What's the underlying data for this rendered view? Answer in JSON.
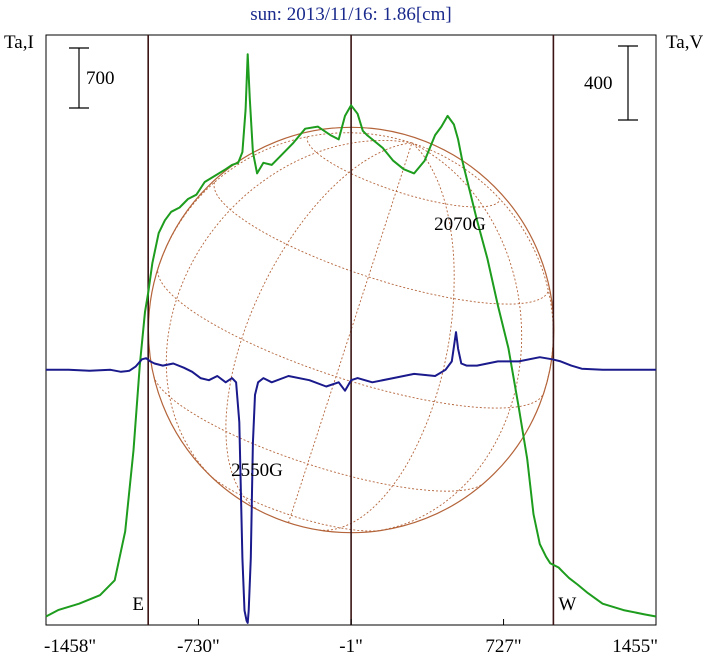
{
  "chart_data": {
    "type": "line",
    "title": "sun: 2013/11/16: 1.86[cm]",
    "ylabel_left": "Ta,I",
    "ylabel_right": "Ta,V",
    "x_unit": "arcsec",
    "x_ticks": [
      {
        "value": -1458,
        "label": "-1458\""
      },
      {
        "value": -730,
        "label": "-730\""
      },
      {
        "value": -1,
        "label": "-1\""
      },
      {
        "value": 727,
        "label": "727\""
      },
      {
        "value": 1455,
        "label": "1455\""
      }
    ],
    "xlim": [
      -1458,
      1455
    ],
    "scale_bars": [
      {
        "label": "700",
        "side": "left",
        "value": 700
      },
      {
        "label": "400",
        "side": "right",
        "value": 400
      }
    ],
    "limb_markers": [
      {
        "label": "E",
        "x": -970
      },
      {
        "label": "W",
        "x": 965
      }
    ],
    "center_line_x": -1,
    "solar_radius": 968,
    "annotations": [
      {
        "label": "2550G",
        "x": -495,
        "series": "V"
      },
      {
        "label": "2070G",
        "x": 505,
        "series": "V"
      }
    ],
    "intensity_ylim": [
      -20,
      2750
    ],
    "polarization_ylim": [
      -1220,
      1600
    ],
    "series": [
      {
        "color": "#1d9c1d",
        "axis": "left",
        "x": [
          -1458,
          -1400,
          -1300,
          -1200,
          -1130,
          -1080,
          -1040,
          -1010,
          -985,
          -970,
          -950,
          -920,
          -890,
          -860,
          -820,
          -780,
          -740,
          -700,
          -650,
          -600,
          -570,
          -540,
          -520,
          -505,
          -495,
          -485,
          -470,
          -450,
          -420,
          -380,
          -340,
          -280,
          -220,
          -160,
          -100,
          -60,
          -30,
          -1,
          30,
          55,
          75,
          100,
          150,
          200,
          250,
          300,
          350,
          400,
          430,
          460,
          490,
          510,
          530,
          560,
          600,
          650,
          700,
          750,
          800,
          840,
          870,
          900,
          930,
          950,
          970,
          990,
          1010,
          1040,
          1080,
          1130,
          1200,
          1300,
          1400,
          1455
        ],
        "values": [
          20,
          50,
          80,
          120,
          190,
          420,
          800,
          1200,
          1450,
          1540,
          1680,
          1820,
          1880,
          1920,
          1940,
          1980,
          2000,
          2060,
          2090,
          2120,
          2140,
          2150,
          2200,
          2400,
          2660,
          2450,
          2200,
          2100,
          2150,
          2140,
          2180,
          2240,
          2310,
          2320,
          2280,
          2260,
          2370,
          2420,
          2380,
          2300,
          2280,
          2260,
          2220,
          2160,
          2120,
          2100,
          2160,
          2280,
          2320,
          2370,
          2330,
          2260,
          2160,
          2040,
          1880,
          1700,
          1480,
          1280,
          1000,
          760,
          500,
          360,
          300,
          270,
          260,
          250,
          230,
          200,
          170,
          130,
          80,
          50,
          30,
          20
        ]
      },
      {
        "color": "#1a1a8c",
        "axis": "right",
        "x": [
          -1458,
          -1350,
          -1250,
          -1150,
          -1100,
          -1060,
          -1030,
          -1000,
          -980,
          -960,
          -940,
          -900,
          -850,
          -800,
          -760,
          -720,
          -680,
          -640,
          -600,
          -570,
          -550,
          -535,
          -520,
          -510,
          -500,
          -495,
          -490,
          -480,
          -470,
          -460,
          -445,
          -420,
          -380,
          -300,
          -200,
          -120,
          -60,
          -30,
          -1,
          30,
          100,
          200,
          300,
          400,
          450,
          480,
          500,
          510,
          525,
          550,
          600,
          700,
          800,
          900,
          960,
          1000,
          1050,
          1100,
          1200,
          1300,
          1455
        ],
        "values": [
          0,
          0,
          -5,
          0,
          -10,
          -5,
          15,
          50,
          55,
          40,
          30,
          20,
          30,
          10,
          -10,
          -40,
          -50,
          -30,
          -60,
          -40,
          -60,
          -250,
          -900,
          -1150,
          -1200,
          -1210,
          -1150,
          -900,
          -350,
          -120,
          -60,
          -40,
          -60,
          -30,
          -50,
          -80,
          -60,
          -100,
          -50,
          -40,
          -60,
          -40,
          -20,
          -30,
          0,
          40,
          180,
          100,
          30,
          20,
          20,
          40,
          40,
          60,
          50,
          40,
          20,
          5,
          0,
          0,
          0
        ]
      }
    ]
  }
}
